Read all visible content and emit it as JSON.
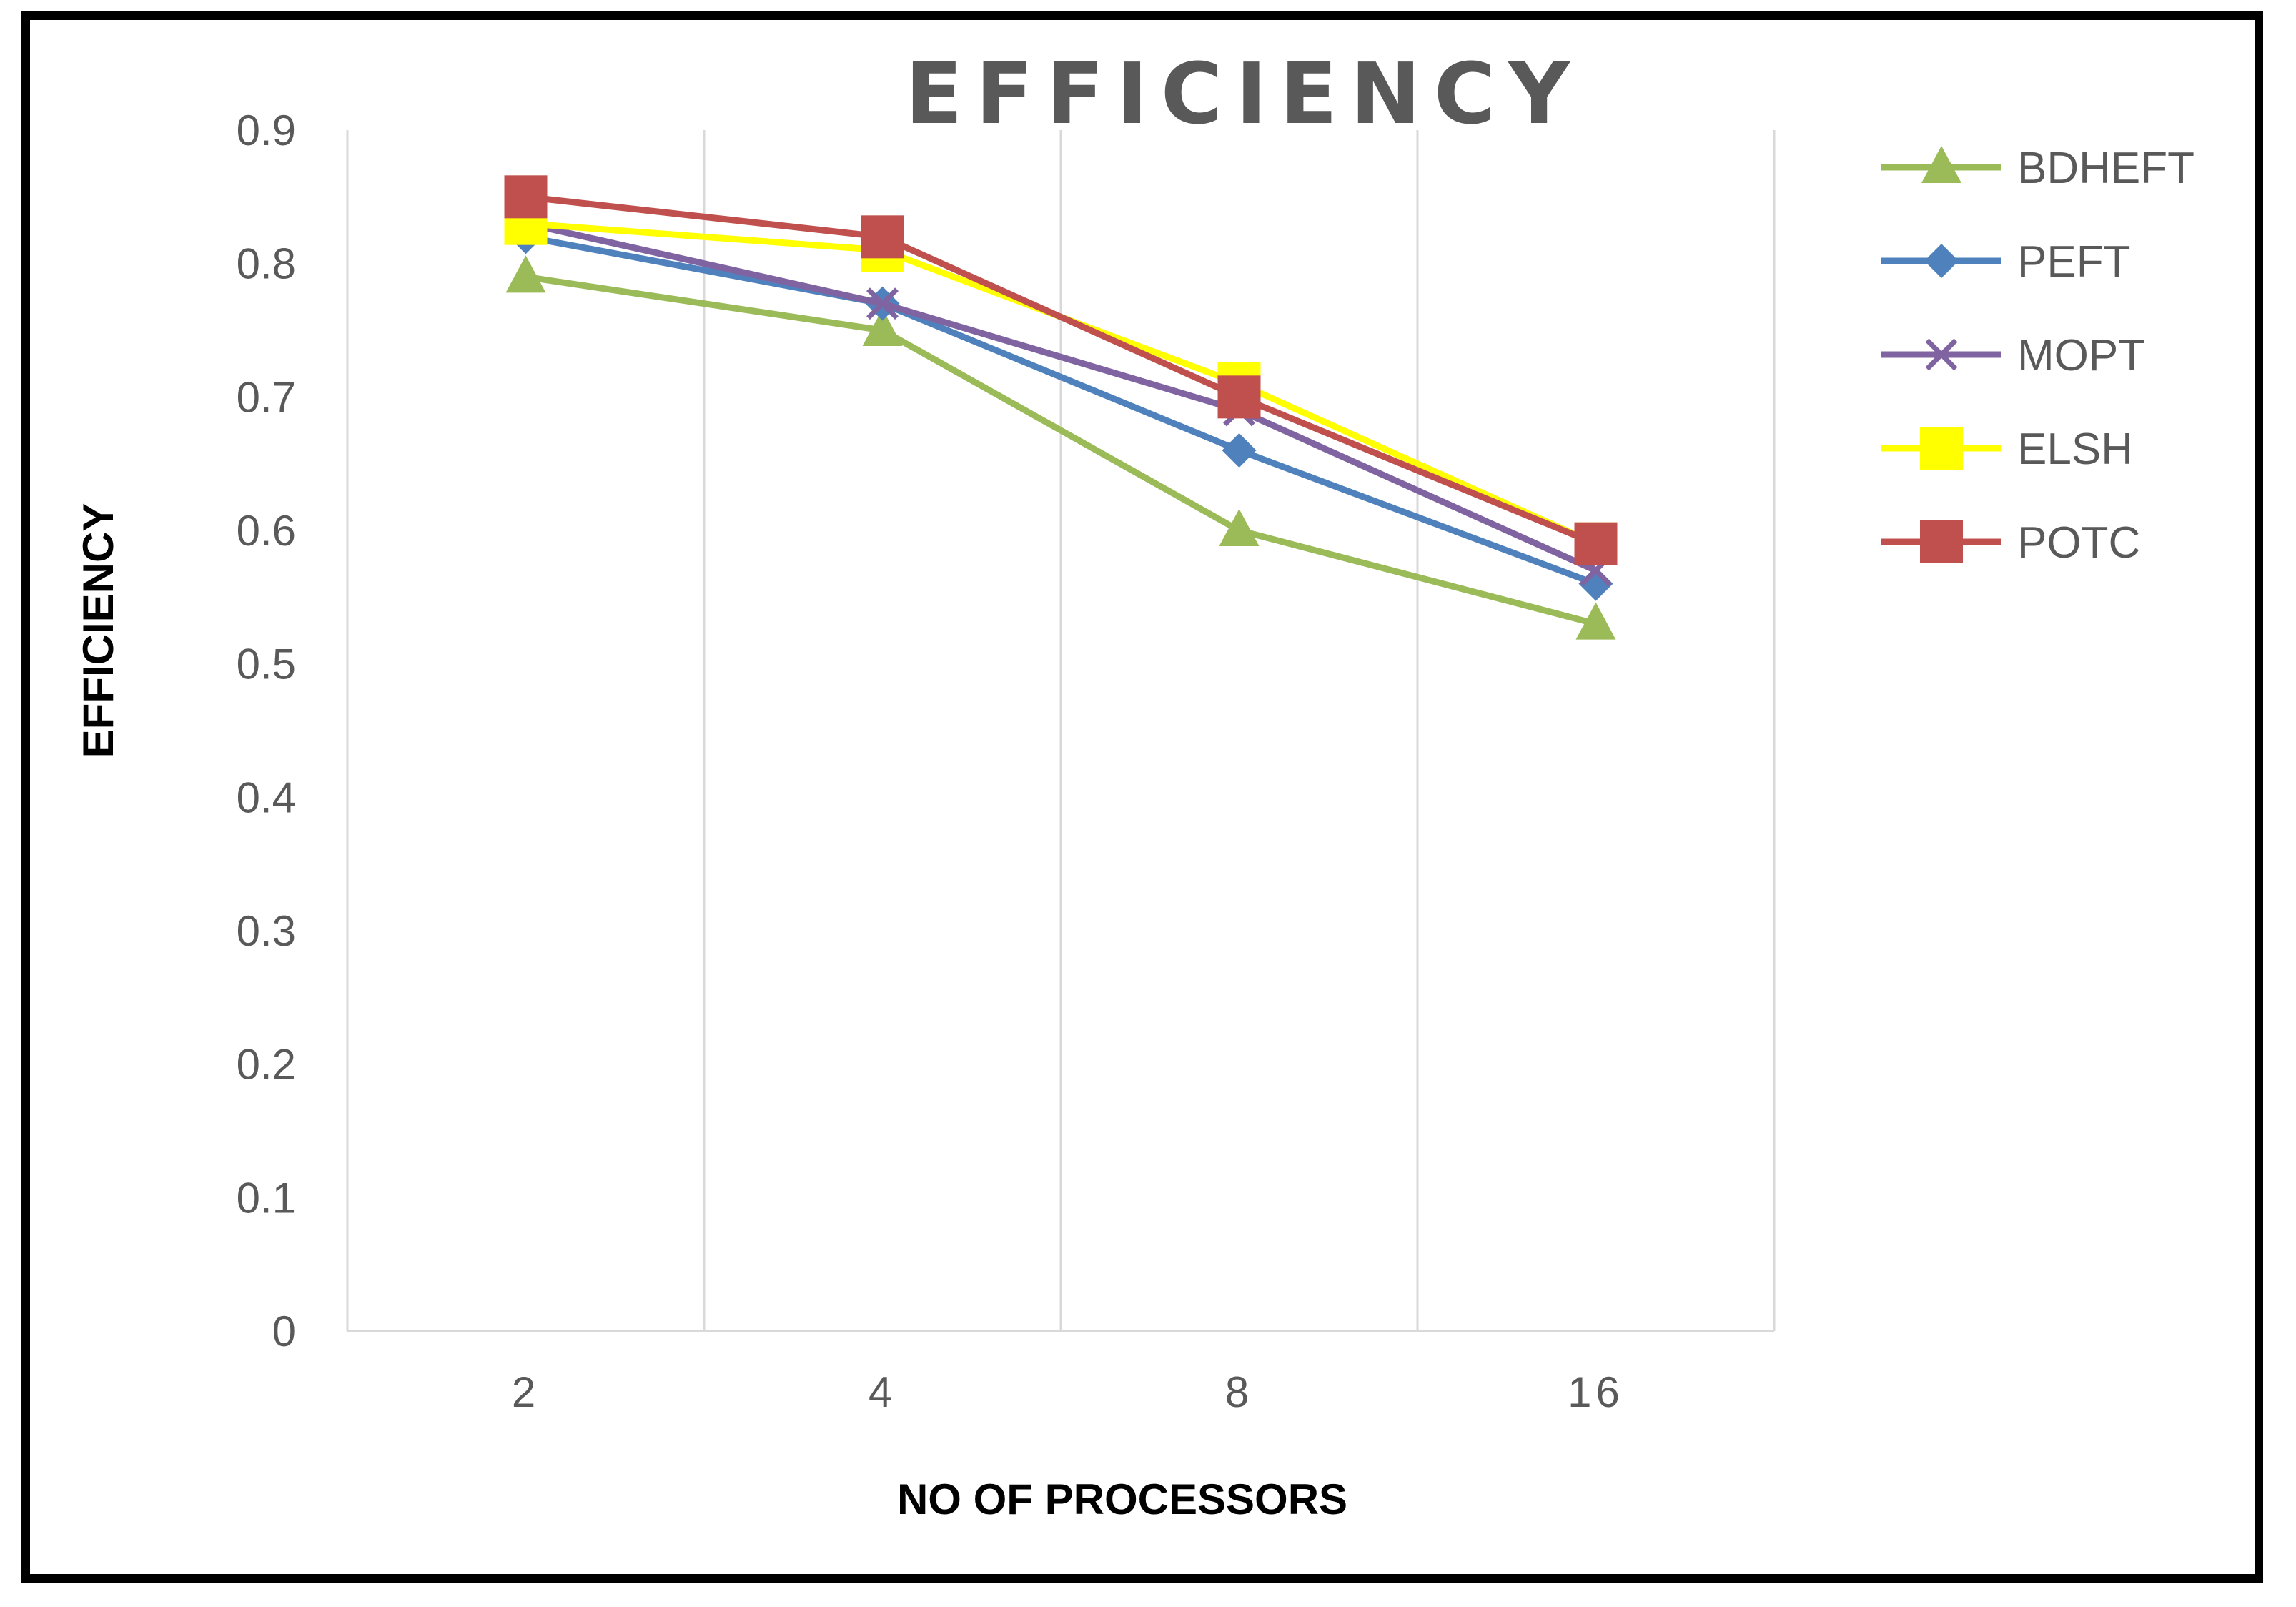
{
  "chart_data": {
    "type": "line",
    "title": "EFFICIENCY",
    "xlabel": "NO OF PROCESSORS",
    "ylabel": "EFFICIENCY",
    "categories": [
      "2",
      "4",
      "8",
      "16"
    ],
    "ylim": [
      0,
      0.9
    ],
    "yticks": [
      "0",
      "0.1",
      "0.2",
      "0.3",
      "0.4",
      "0.5",
      "0.6",
      "0.7",
      "0.8",
      "0.9"
    ],
    "grid": "vertical",
    "legend_position": "right",
    "series": [
      {
        "name": "BDHEFT",
        "values": [
          0.79,
          0.75,
          0.6,
          0.53
        ],
        "color": "#9BBB59",
        "marker": "triangle"
      },
      {
        "name": "PEFT",
        "values": [
          0.82,
          0.77,
          0.66,
          0.56
        ],
        "color": "#4F81BD",
        "marker": "diamond"
      },
      {
        "name": "MOPT",
        "values": [
          0.83,
          0.77,
          0.69,
          0.57
        ],
        "color": "#8064A2",
        "marker": "x"
      },
      {
        "name": "ELSH",
        "values": [
          0.83,
          0.81,
          0.71,
          0.59
        ],
        "color": "#FFFF00",
        "marker": "square"
      },
      {
        "name": "POTC",
        "values": [
          0.85,
          0.82,
          0.7,
          0.59
        ],
        "color": "#C0504D",
        "marker": "square"
      }
    ]
  }
}
